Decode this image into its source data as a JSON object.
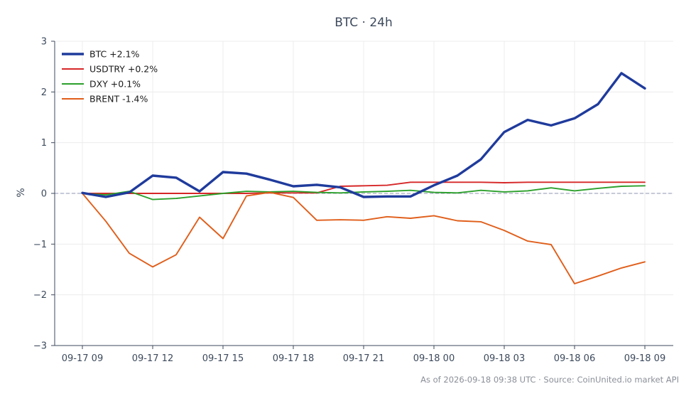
{
  "chart_data": {
    "type": "line",
    "title": "BTC · 24h",
    "xlabel": "",
    "ylabel": "%",
    "ylim": [
      -3,
      3
    ],
    "yticks": [
      3,
      2,
      1,
      0,
      -1,
      -2,
      -3
    ],
    "ytick_labels": [
      "3",
      "2",
      "1",
      "0",
      "−1",
      "−2",
      "−3"
    ],
    "x": [
      "2026-09-17 09:00",
      "2026-09-17 10:00",
      "2026-09-17 11:00",
      "2026-09-17 12:00",
      "2026-09-17 13:00",
      "2026-09-17 14:00",
      "2026-09-17 15:00",
      "2026-09-17 16:00",
      "2026-09-17 17:00",
      "2026-09-17 18:00",
      "2026-09-17 19:00",
      "2026-09-17 20:00",
      "2026-09-17 21:00",
      "2026-09-17 22:00",
      "2026-09-17 23:00",
      "2026-09-18 00:00",
      "2026-09-18 01:00",
      "2026-09-18 02:00",
      "2026-09-18 03:00",
      "2026-09-18 04:00",
      "2026-09-18 05:00",
      "2026-09-18 06:00",
      "2026-09-18 07:00",
      "2026-09-18 08:00",
      "2026-09-18 09:00"
    ],
    "xticks": [
      "2026-09-17 09:00",
      "2026-09-17 12:00",
      "2026-09-17 15:00",
      "2026-09-17 18:00",
      "2026-09-17 21:00",
      "2026-09-18 00:00",
      "2026-09-18 03:00",
      "2026-09-18 06:00",
      "2026-09-18 09:00"
    ],
    "xtick_labels": [
      "09-17 09",
      "09-17 12",
      "09-17 15",
      "09-17 18",
      "09-17 21",
      "09-18 00",
      "09-18 03",
      "09-18 06",
      "09-18 09"
    ],
    "zero_line": true,
    "grid": true,
    "legend_position": "top-left",
    "series": [
      {
        "name": "BTC +2.1%",
        "color": "#1f3b9c",
        "bold": true,
        "values": [
          0.01,
          -0.07,
          0.02,
          0.35,
          0.31,
          0.04,
          0.42,
          0.39,
          0.27,
          0.14,
          0.17,
          0.12,
          -0.07,
          -0.06,
          -0.06,
          0.16,
          0.35,
          0.67,
          1.21,
          1.45,
          1.34,
          1.48,
          1.76,
          2.37,
          2.07
        ]
      },
      {
        "name": "USDTRY +0.2%",
        "color": "#d62728",
        "bold": false,
        "values": [
          0.0,
          0.0,
          0.0,
          0.0,
          0.0,
          0.0,
          0.0,
          0.0,
          0.01,
          0.01,
          0.01,
          0.14,
          0.15,
          0.16,
          0.22,
          0.22,
          0.22,
          0.22,
          0.21,
          0.22,
          0.22,
          0.22,
          0.22,
          0.22,
          0.22
        ]
      },
      {
        "name": "DXY +0.1%",
        "color": "#2ca02c",
        "bold": false,
        "values": [
          0.0,
          -0.03,
          0.04,
          -0.12,
          -0.1,
          -0.05,
          0.0,
          0.04,
          0.03,
          0.04,
          0.02,
          0.01,
          0.03,
          0.04,
          0.06,
          0.02,
          0.01,
          0.06,
          0.03,
          0.05,
          0.11,
          0.05,
          0.1,
          0.14,
          0.15
        ]
      },
      {
        "name": "BRENT -1.4%",
        "color": "#e05e1a",
        "bold": false,
        "values": [
          0.0,
          -0.55,
          -1.18,
          -1.45,
          -1.21,
          -0.47,
          -0.89,
          -0.05,
          0.02,
          -0.08,
          -0.53,
          -0.52,
          -0.53,
          -0.46,
          -0.49,
          -0.44,
          -0.54,
          -0.56,
          -0.73,
          -0.94,
          -1.01,
          -1.78,
          -1.63,
          -1.47,
          -1.35
        ]
      }
    ]
  },
  "footer": {
    "text": "As of 2026-09-18 09:38 UTC · Source: CoinUnited.io market API"
  }
}
